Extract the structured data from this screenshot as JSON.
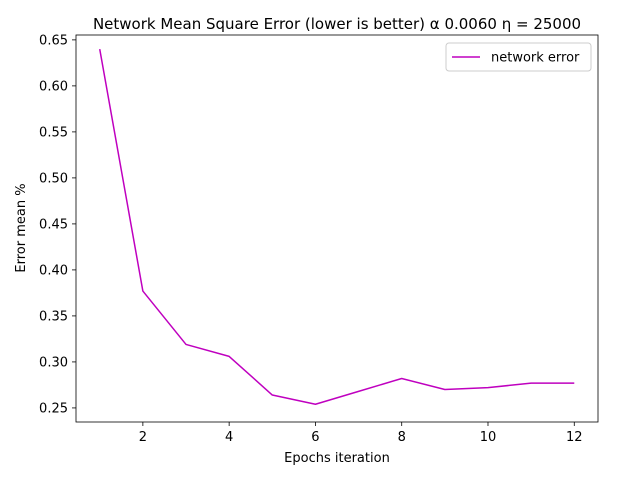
{
  "chart_data": {
    "type": "line",
    "title": "Network Mean Square Error (lower is better) α 0.0060  η = 25000",
    "xlabel": "Epochs iteration",
    "ylabel": "Error mean %",
    "xlim": [
      0.45,
      12.55
    ],
    "ylim": [
      0.2347,
      0.6553
    ],
    "xticks": [
      2,
      4,
      6,
      8,
      10,
      12
    ],
    "yticks": [
      0.25,
      0.3,
      0.35,
      0.4,
      0.45,
      0.5,
      0.55,
      0.6,
      0.65
    ],
    "ytick_labels": [
      "0.25",
      "0.30",
      "0.35",
      "0.40",
      "0.45",
      "0.50",
      "0.55",
      "0.60",
      "0.65"
    ],
    "grid": false,
    "legend_position": "top-right",
    "series": [
      {
        "name": "network error",
        "color": "#bf00bf",
        "x": [
          1,
          2,
          3,
          4,
          5,
          6,
          7,
          8,
          9,
          10,
          11,
          12
        ],
        "y": [
          0.64,
          0.377,
          0.319,
          0.306,
          0.264,
          0.254,
          0.268,
          0.282,
          0.27,
          0.272,
          0.277,
          0.277
        ]
      }
    ]
  }
}
